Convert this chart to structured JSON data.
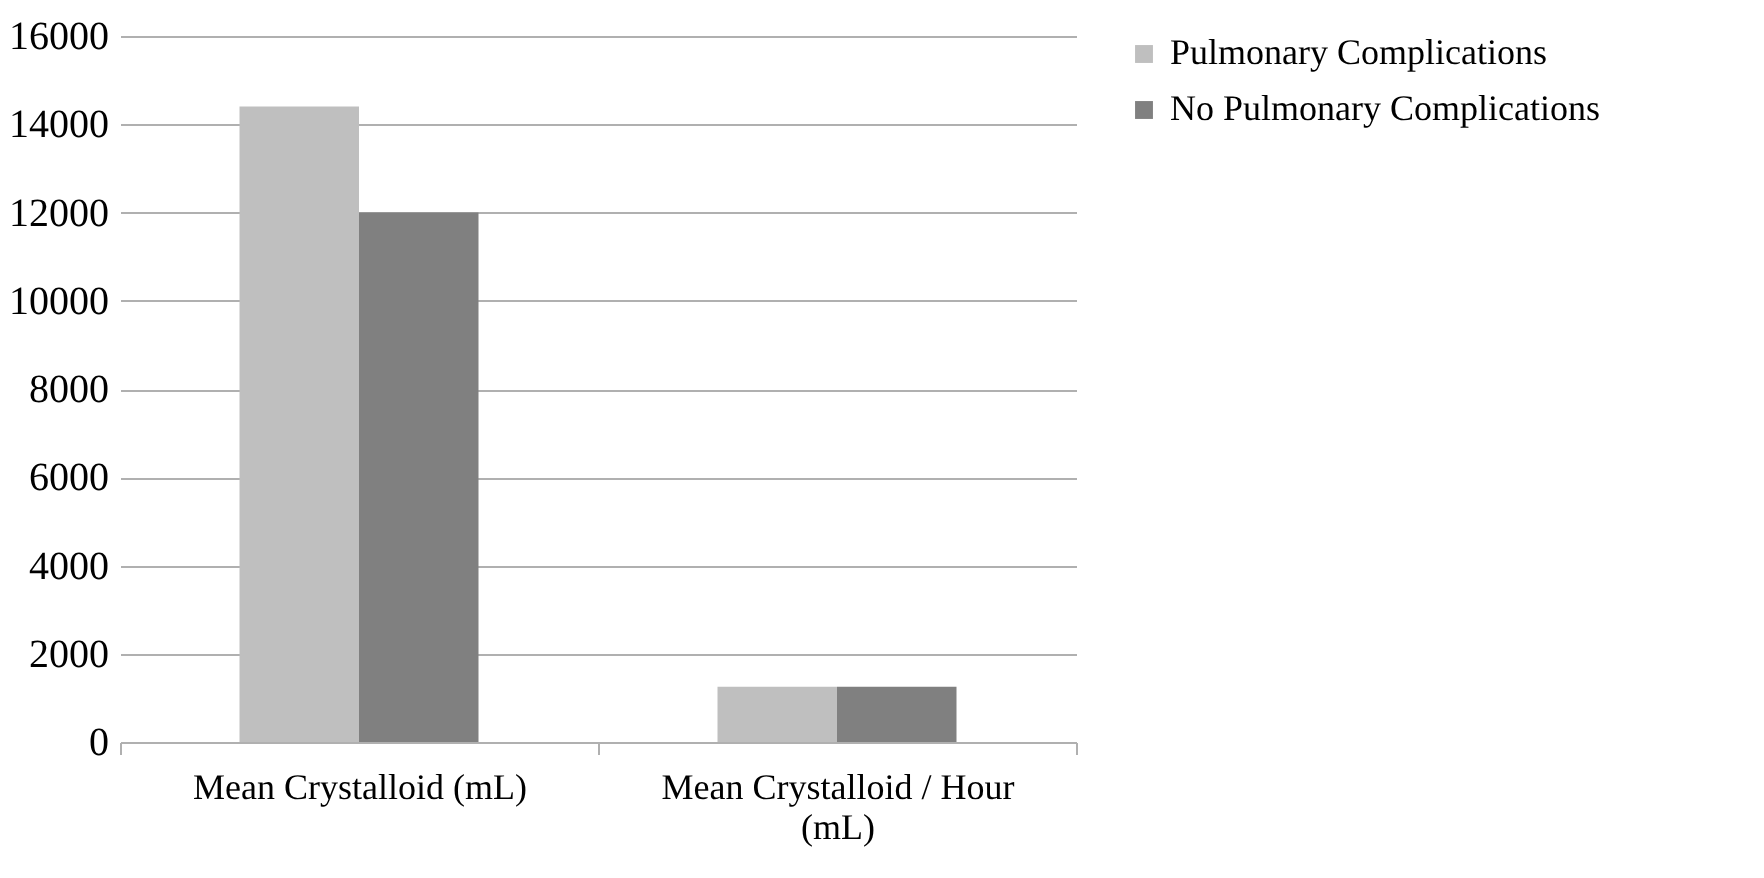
{
  "chart_data": {
    "type": "bar",
    "categories": [
      "Mean Crystalloid (mL)",
      "Mean Crystalloid / Hour (mL)"
    ],
    "series": [
      {
        "name": "Pulmonary Complications",
        "color": "#bfbfbf",
        "values": [
          14400,
          1250
        ]
      },
      {
        "name": "No Pulmonary Complications",
        "color": "#808080",
        "values": [
          12000,
          1250
        ]
      }
    ],
    "ylim": [
      0,
      16000
    ],
    "yticks": [
      0,
      2000,
      4000,
      6000,
      8000,
      10000,
      12000,
      14000,
      16000
    ],
    "grid": "y",
    "legend": "right"
  }
}
